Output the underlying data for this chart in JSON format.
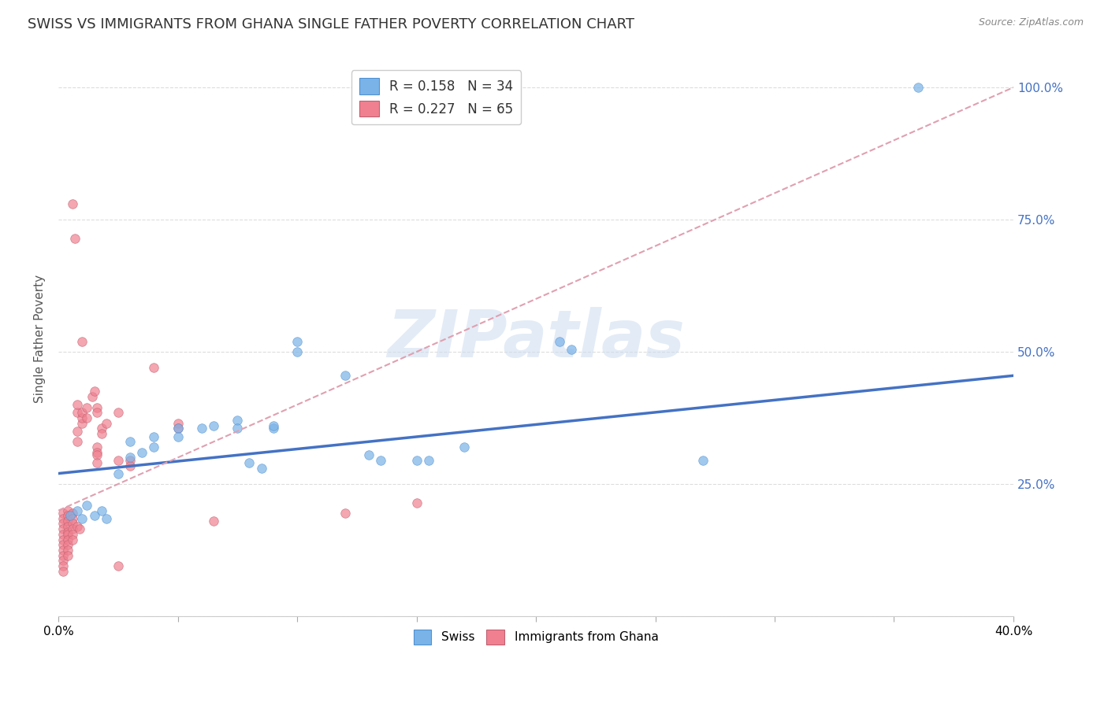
{
  "title": "SWISS VS IMMIGRANTS FROM GHANA SINGLE FATHER POVERTY CORRELATION CHART",
  "source": "Source: ZipAtlas.com",
  "ylabel": "Single Father Poverty",
  "yticks": [
    0.0,
    0.25,
    0.5,
    0.75,
    1.0
  ],
  "ytick_labels": [
    "",
    "25.0%",
    "50.0%",
    "75.0%",
    "100.0%"
  ],
  "xlim": [
    0.0,
    0.4
  ],
  "ylim": [
    0.0,
    1.05
  ],
  "swiss_color": "#7ab3e8",
  "swiss_edge_color": "#5090d0",
  "ghana_color": "#f08090",
  "ghana_edge_color": "#c06070",
  "swiss_line_color": "#4472c4",
  "ghana_line_color": "#e0a0b0",
  "watermark_text": "ZIPatlas",
  "background_color": "#ffffff",
  "grid_color": "#dddddd",
  "title_fontsize": 13,
  "axis_label_fontsize": 11,
  "tick_fontsize": 11,
  "swiss_points": [
    [
      0.005,
      0.19
    ],
    [
      0.008,
      0.2
    ],
    [
      0.01,
      0.185
    ],
    [
      0.012,
      0.21
    ],
    [
      0.015,
      0.19
    ],
    [
      0.018,
      0.2
    ],
    [
      0.02,
      0.185
    ],
    [
      0.025,
      0.27
    ],
    [
      0.03,
      0.33
    ],
    [
      0.03,
      0.3
    ],
    [
      0.035,
      0.31
    ],
    [
      0.04,
      0.32
    ],
    [
      0.04,
      0.34
    ],
    [
      0.05,
      0.355
    ],
    [
      0.05,
      0.34
    ],
    [
      0.06,
      0.355
    ],
    [
      0.065,
      0.36
    ],
    [
      0.075,
      0.37
    ],
    [
      0.075,
      0.355
    ],
    [
      0.08,
      0.29
    ],
    [
      0.085,
      0.28
    ],
    [
      0.09,
      0.355
    ],
    [
      0.09,
      0.36
    ],
    [
      0.1,
      0.52
    ],
    [
      0.1,
      0.5
    ],
    [
      0.12,
      0.455
    ],
    [
      0.13,
      0.305
    ],
    [
      0.135,
      0.295
    ],
    [
      0.15,
      0.295
    ],
    [
      0.155,
      0.295
    ],
    [
      0.17,
      0.32
    ],
    [
      0.21,
      0.52
    ],
    [
      0.215,
      0.505
    ],
    [
      0.27,
      0.295
    ],
    [
      0.36,
      1.0
    ]
  ],
  "ghana_points": [
    [
      0.002,
      0.195
    ],
    [
      0.002,
      0.185
    ],
    [
      0.002,
      0.175
    ],
    [
      0.002,
      0.165
    ],
    [
      0.002,
      0.155
    ],
    [
      0.002,
      0.145
    ],
    [
      0.002,
      0.135
    ],
    [
      0.002,
      0.125
    ],
    [
      0.002,
      0.115
    ],
    [
      0.002,
      0.105
    ],
    [
      0.002,
      0.095
    ],
    [
      0.002,
      0.085
    ],
    [
      0.004,
      0.2
    ],
    [
      0.004,
      0.19
    ],
    [
      0.004,
      0.18
    ],
    [
      0.004,
      0.17
    ],
    [
      0.004,
      0.16
    ],
    [
      0.004,
      0.155
    ],
    [
      0.004,
      0.145
    ],
    [
      0.004,
      0.135
    ],
    [
      0.004,
      0.125
    ],
    [
      0.004,
      0.115
    ],
    [
      0.006,
      0.195
    ],
    [
      0.006,
      0.185
    ],
    [
      0.006,
      0.175
    ],
    [
      0.006,
      0.165
    ],
    [
      0.006,
      0.155
    ],
    [
      0.006,
      0.145
    ],
    [
      0.008,
      0.35
    ],
    [
      0.008,
      0.33
    ],
    [
      0.008,
      0.385
    ],
    [
      0.008,
      0.4
    ],
    [
      0.01,
      0.365
    ],
    [
      0.01,
      0.375
    ],
    [
      0.01,
      0.385
    ],
    [
      0.012,
      0.395
    ],
    [
      0.012,
      0.375
    ],
    [
      0.014,
      0.415
    ],
    [
      0.015,
      0.425
    ],
    [
      0.016,
      0.395
    ],
    [
      0.016,
      0.385
    ],
    [
      0.016,
      0.32
    ],
    [
      0.016,
      0.31
    ],
    [
      0.016,
      0.305
    ],
    [
      0.016,
      0.29
    ],
    [
      0.018,
      0.355
    ],
    [
      0.018,
      0.345
    ],
    [
      0.02,
      0.365
    ],
    [
      0.025,
      0.385
    ],
    [
      0.025,
      0.295
    ],
    [
      0.03,
      0.295
    ],
    [
      0.03,
      0.285
    ],
    [
      0.04,
      0.47
    ],
    [
      0.05,
      0.365
    ],
    [
      0.05,
      0.355
    ],
    [
      0.006,
      0.78
    ],
    [
      0.007,
      0.715
    ],
    [
      0.01,
      0.52
    ],
    [
      0.008,
      0.17
    ],
    [
      0.009,
      0.165
    ],
    [
      0.15,
      0.215
    ],
    [
      0.12,
      0.195
    ],
    [
      0.065,
      0.18
    ],
    [
      0.025,
      0.095
    ]
  ],
  "swiss_line_x0": 0.0,
  "swiss_line_y0": 0.27,
  "swiss_line_x1": 0.4,
  "swiss_line_y1": 0.455,
  "ghana_line_x0": 0.0,
  "ghana_line_y0": 0.2,
  "ghana_line_x1": 0.4,
  "ghana_line_y1": 1.0
}
